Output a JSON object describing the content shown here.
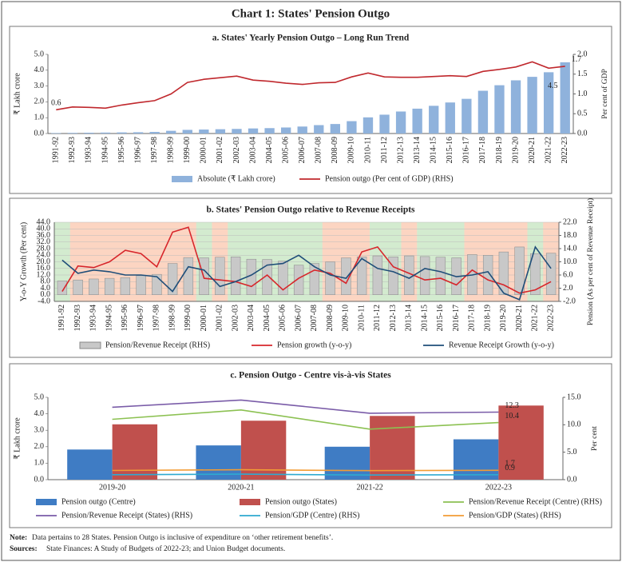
{
  "header": {
    "title": "Chart 1: States' Pension Outgo",
    "note_label": "Note:",
    "note": "Data pertains to 28 States. Pension Outgo is inclusive of expenditure on ‘other retirement benefits’.",
    "sources_label": "Sources:",
    "sources": "State Finances: A Study of Budgets of 2022-23; and Union Budget documents."
  },
  "chart_data": [
    {
      "type": "combo",
      "title": "a. States' Yearly Pension Outgo – Long Run Trend",
      "y_label": "₹ Lakh crore",
      "y2_label": "Per cent of GDP",
      "rotate_x": true,
      "grid": false,
      "categories": [
        "1991-92",
        "1992-93",
        "1993-94",
        "1994-95",
        "1995-96",
        "1996-97",
        "1997-98",
        "1998-99",
        "1999-00",
        "2000-01",
        "2001-02",
        "2002-03",
        "2003-04",
        "2004-05",
        "2005-06",
        "2006-07",
        "2007-08",
        "2008-09",
        "2009-10",
        "2010-11",
        "2011-12",
        "2012-13",
        "2013-14",
        "2014-15",
        "2015-16",
        "2016-17",
        "2017-18",
        "2018-19",
        "2019-20",
        "2020-21",
        "2021-22",
        "2022-23"
      ],
      "ylim": [
        0,
        5
      ],
      "yticks": [
        {
          "value": 0,
          "label": "0.0"
        },
        {
          "value": 1,
          "label": "1.0"
        },
        {
          "value": 2,
          "label": "2.0"
        },
        {
          "value": 3,
          "label": "3.0"
        },
        {
          "value": 4,
          "label": "4.0"
        },
        {
          "value": 5,
          "label": "5.0"
        }
      ],
      "y2lim": [
        0,
        2
      ],
      "y2ticks": [
        {
          "value": 0,
          "label": "0.0"
        },
        0.5,
        {
          "value": 1,
          "label": "1.0"
        },
        1.5,
        {
          "value": 2,
          "label": "2.0"
        }
      ],
      "series": [
        {
          "name": "Absolute (₹ Lakh crore)",
          "kind": "bar",
          "color": "#8fb2dc",
          "values": [
            0.03,
            0.04,
            0.05,
            0.06,
            0.07,
            0.08,
            0.1,
            0.17,
            0.23,
            0.25,
            0.27,
            0.29,
            0.32,
            0.34,
            0.38,
            0.44,
            0.53,
            0.6,
            0.78,
            1.02,
            1.19,
            1.39,
            1.57,
            1.75,
            1.96,
            2.19,
            2.7,
            3.05,
            3.36,
            3.58,
            3.87,
            4.5
          ],
          "value_labels": [
            null,
            null,
            null,
            null,
            null,
            null,
            null,
            null,
            null,
            null,
            null,
            null,
            null,
            null,
            null,
            null,
            null,
            null,
            null,
            null,
            null,
            null,
            null,
            null,
            null,
            null,
            null,
            null,
            null,
            null,
            null,
            "4.5"
          ]
        },
        {
          "name": "Pension outgo (Per cent of GDP) (RHS)",
          "kind": "line",
          "axis": "y2",
          "color": "#c0282d",
          "values": [
            0.6,
            0.67,
            0.66,
            0.64,
            0.72,
            0.78,
            0.83,
            1.0,
            1.29,
            1.37,
            1.41,
            1.45,
            1.35,
            1.32,
            1.27,
            1.24,
            1.28,
            1.29,
            1.43,
            1.53,
            1.43,
            1.42,
            1.42,
            1.44,
            1.46,
            1.44,
            1.57,
            1.62,
            1.68,
            1.81,
            1.65,
            1.7
          ],
          "value_labels": [
            "0.6",
            null,
            null,
            null,
            null,
            null,
            null,
            null,
            null,
            null,
            null,
            null,
            null,
            null,
            null,
            null,
            null,
            null,
            null,
            null,
            null,
            null,
            null,
            null,
            null,
            null,
            null,
            null,
            null,
            null,
            null,
            "1.7"
          ]
        }
      ]
    },
    {
      "type": "combo",
      "title": "b. States' Pension Outgo relative to Revenue Receipts",
      "y_label": "Y-o-Y Growth (Per cent)",
      "y2_label": "Pension (As per cent of Revenue Receipt)",
      "rotate_x": true,
      "grid": true,
      "categories": [
        "1991-92",
        "1992-93",
        "1993-94",
        "1994-95",
        "1995-96",
        "1996-97",
        "1997-98",
        "1998-99",
        "1999-00",
        "2000-01",
        "2001-02",
        "2002-03",
        "2003-04",
        "2004-05",
        "2005-06",
        "2006-07",
        "2007-08",
        "2008-09",
        "2009-10",
        "2010-11",
        "2011-12",
        "2012-13",
        "2013-14",
        "2014-15",
        "2015-16",
        "2016-17",
        "2017-18",
        "2018-19",
        "2019-20",
        "2020-21",
        "2021-22",
        "2022-23"
      ],
      "shade_colors": [
        "#d3ebcf",
        "#fcd5c2",
        "#fcd5c2",
        "#fcd5c2",
        "#fcd5c2",
        "#fcd5c2",
        "#fcd5c2",
        "#fcd5c2",
        "#fcd5c2",
        "#d3ebcf",
        "#fcd5c2",
        "#d3ebcf",
        "#d3ebcf",
        "#d3ebcf",
        "#d3ebcf",
        "#d3ebcf",
        "#d3ebcf",
        "#fcd5c2",
        "#fcd5c2",
        "#fcd5c2",
        "#d3ebcf",
        "#d3ebcf",
        "#fcd5c2",
        "#d3ebcf",
        "#d3ebcf",
        "#d3ebcf",
        "#fcd5c2",
        "#fcd5c2",
        "#fcd5c2",
        "#fcd5c2",
        "#d3ebcf",
        "#fcd5c2"
      ],
      "ylim": [
        -4,
        44
      ],
      "yticks": [
        {
          "value": -4,
          "label": "-4.0"
        },
        {
          "value": 0,
          "label": "0.0"
        },
        {
          "value": 4,
          "label": "4.0"
        },
        {
          "value": 8,
          "label": "8.0"
        },
        {
          "value": 12,
          "label": "12.0"
        },
        {
          "value": 16,
          "label": "16.0"
        },
        {
          "value": 20,
          "label": "20.0"
        },
        {
          "value": 24,
          "label": "24.0"
        },
        {
          "value": 28,
          "label": "28.0"
        },
        {
          "value": 32,
          "label": "32.0"
        },
        {
          "value": 36,
          "label": "36.0"
        },
        {
          "value": 40,
          "label": "40.0"
        },
        {
          "value": 44,
          "label": "44.0"
        }
      ],
      "y2lim": [
        -2,
        22
      ],
      "y2ticks": [
        {
          "value": -2,
          "label": "-2.0"
        },
        {
          "value": 2,
          "label": "2.0"
        },
        {
          "value": 6,
          "label": "6.0"
        },
        {
          "value": 10,
          "label": "10.0"
        },
        {
          "value": 14,
          "label": "14.0"
        },
        {
          "value": 18,
          "label": "18.0"
        },
        {
          "value": 22,
          "label": "22.0"
        }
      ],
      "series": [
        {
          "name": "Pension/Revenue Receipt (RHS)",
          "kind": "bar",
          "axis": "y2",
          "color": "#c8c8c8",
          "values": [
            4.2,
            4.5,
            4.8,
            5.0,
            5.2,
            5.8,
            6.2,
            9.5,
            11.3,
            11.2,
            11.4,
            11.5,
            10.8,
            10.7,
            10.2,
            9.0,
            9.5,
            10.0,
            11.2,
            11.5,
            11.8,
            11.5,
            11.8,
            11.6,
            11.4,
            11.2,
            12.2,
            12.0,
            13.0,
            14.5,
            12.5,
            12.6
          ]
        },
        {
          "name": "Pension growth (y-o-y)",
          "kind": "line",
          "color": "#d7262b",
          "values": [
            2,
            17.5,
            16.5,
            20,
            27,
            25,
            17,
            38,
            41,
            10,
            9,
            8,
            5,
            12,
            3,
            10,
            15,
            13,
            7,
            26,
            29,
            17,
            13,
            9,
            10,
            6,
            15,
            9,
            6,
            1,
            3,
            8
          ]
        },
        {
          "name": "Revenue Receipt Growth (y-o-y)",
          "kind": "line",
          "color": "#1f4e79",
          "values": [
            21,
            13,
            15,
            14,
            12,
            12,
            11,
            2,
            17,
            15,
            5,
            8,
            12,
            18,
            19,
            24,
            17,
            12,
            10,
            22,
            16,
            14,
            10,
            16,
            14,
            11,
            12,
            14,
            1,
            -3,
            29,
            16
          ]
        }
      ]
    },
    {
      "type": "combo",
      "title": "c. Pension Outgo - Centre vis-à-vis States",
      "y_label": "₹ Lakh crore",
      "y2_label": "Per cent",
      "rotate_x": false,
      "grid": false,
      "categories": [
        "2019-20",
        "2020-21",
        "2021-22",
        "2022-23"
      ],
      "ylim": [
        0,
        5
      ],
      "yticks": [
        {
          "value": 0,
          "label": "0.0"
        },
        {
          "value": 1,
          "label": "1.0"
        },
        {
          "value": 2,
          "label": "2.0"
        },
        {
          "value": 3,
          "label": "3.0"
        },
        {
          "value": 4,
          "label": "4.0"
        },
        {
          "value": 5,
          "label": "5.0"
        }
      ],
      "y2lim": [
        0,
        15
      ],
      "y2ticks": [
        {
          "value": 0,
          "label": "0.0"
        },
        {
          "value": 5,
          "label": "5.0"
        },
        {
          "value": 10,
          "label": "10.0"
        },
        {
          "value": 15,
          "label": "15.0"
        }
      ],
      "series": [
        {
          "name": "Pension outgo (Centre)",
          "kind": "bar",
          "color": "#3f7cc4",
          "values": [
            1.83,
            2.08,
            2.0,
            2.45
          ]
        },
        {
          "name": "Pension outgo (States)",
          "kind": "bar",
          "color": "#c0504d",
          "values": [
            3.36,
            3.58,
            3.87,
            4.5
          ]
        },
        {
          "name": "Pension/Revenue Receipt (Centre) (RHS)",
          "kind": "line",
          "axis": "y2",
          "color": "#8cc152",
          "values": [
            11.0,
            12.7,
            9.2,
            10.4
          ],
          "value_labels": [
            null,
            null,
            null,
            "10.4"
          ]
        },
        {
          "name": "Pension/Revenue Receipt (States) (RHS)",
          "kind": "line",
          "axis": "y2",
          "color": "#7a5ca8",
          "values": [
            13.2,
            14.5,
            12.1,
            12.3
          ],
          "value_labels": [
            null,
            null,
            null,
            "12.3"
          ]
        },
        {
          "name": "Pension/GDP (Centre) (RHS)",
          "kind": "line",
          "axis": "y2",
          "color": "#2eaad1",
          "values": [
            0.9,
            1.0,
            0.85,
            0.9
          ],
          "value_labels": [
            null,
            null,
            null,
            "0.9"
          ]
        },
        {
          "name": "Pension/GDP (States) (RHS)",
          "kind": "line",
          "axis": "y2",
          "color": "#f39c34",
          "values": [
            1.68,
            1.81,
            1.65,
            1.7
          ],
          "value_labels": [
            null,
            null,
            null,
            "1.7"
          ]
        }
      ]
    }
  ]
}
